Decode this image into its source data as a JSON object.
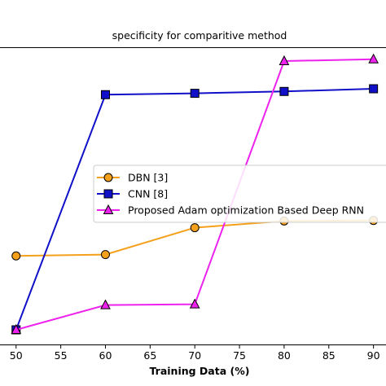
{
  "chart_data": {
    "type": "line",
    "title": "specificity for comparitive method",
    "xlabel": "Training Data (%)",
    "ylabel": "",
    "x": [
      50,
      60,
      70,
      80,
      90
    ],
    "xticks": [
      "50",
      "55",
      "60",
      "65",
      "70",
      "75",
      "80",
      "85",
      "90"
    ],
    "xlim": [
      48.2,
      91.4
    ],
    "ylim": [
      0.0,
      1.0
    ],
    "grid": false,
    "legend_position": "center",
    "series": [
      {
        "name": "DBN [3]",
        "color": "#f5a01a",
        "marker": "circle",
        "values": [
          0.275,
          0.28,
          0.38,
          0.405,
          0.407
        ]
      },
      {
        "name": "CNN [8]",
        "color": "#1010c8",
        "marker": "square",
        "values": [
          0.0,
          0.875,
          0.88,
          0.887,
          0.897
        ]
      },
      {
        "name": "Proposed Adam optimization Based Deep RNN",
        "color": "#ee22ee",
        "marker": "triangle",
        "values": [
          0.0,
          0.092,
          0.095,
          1.0,
          1.007
        ]
      }
    ]
  }
}
